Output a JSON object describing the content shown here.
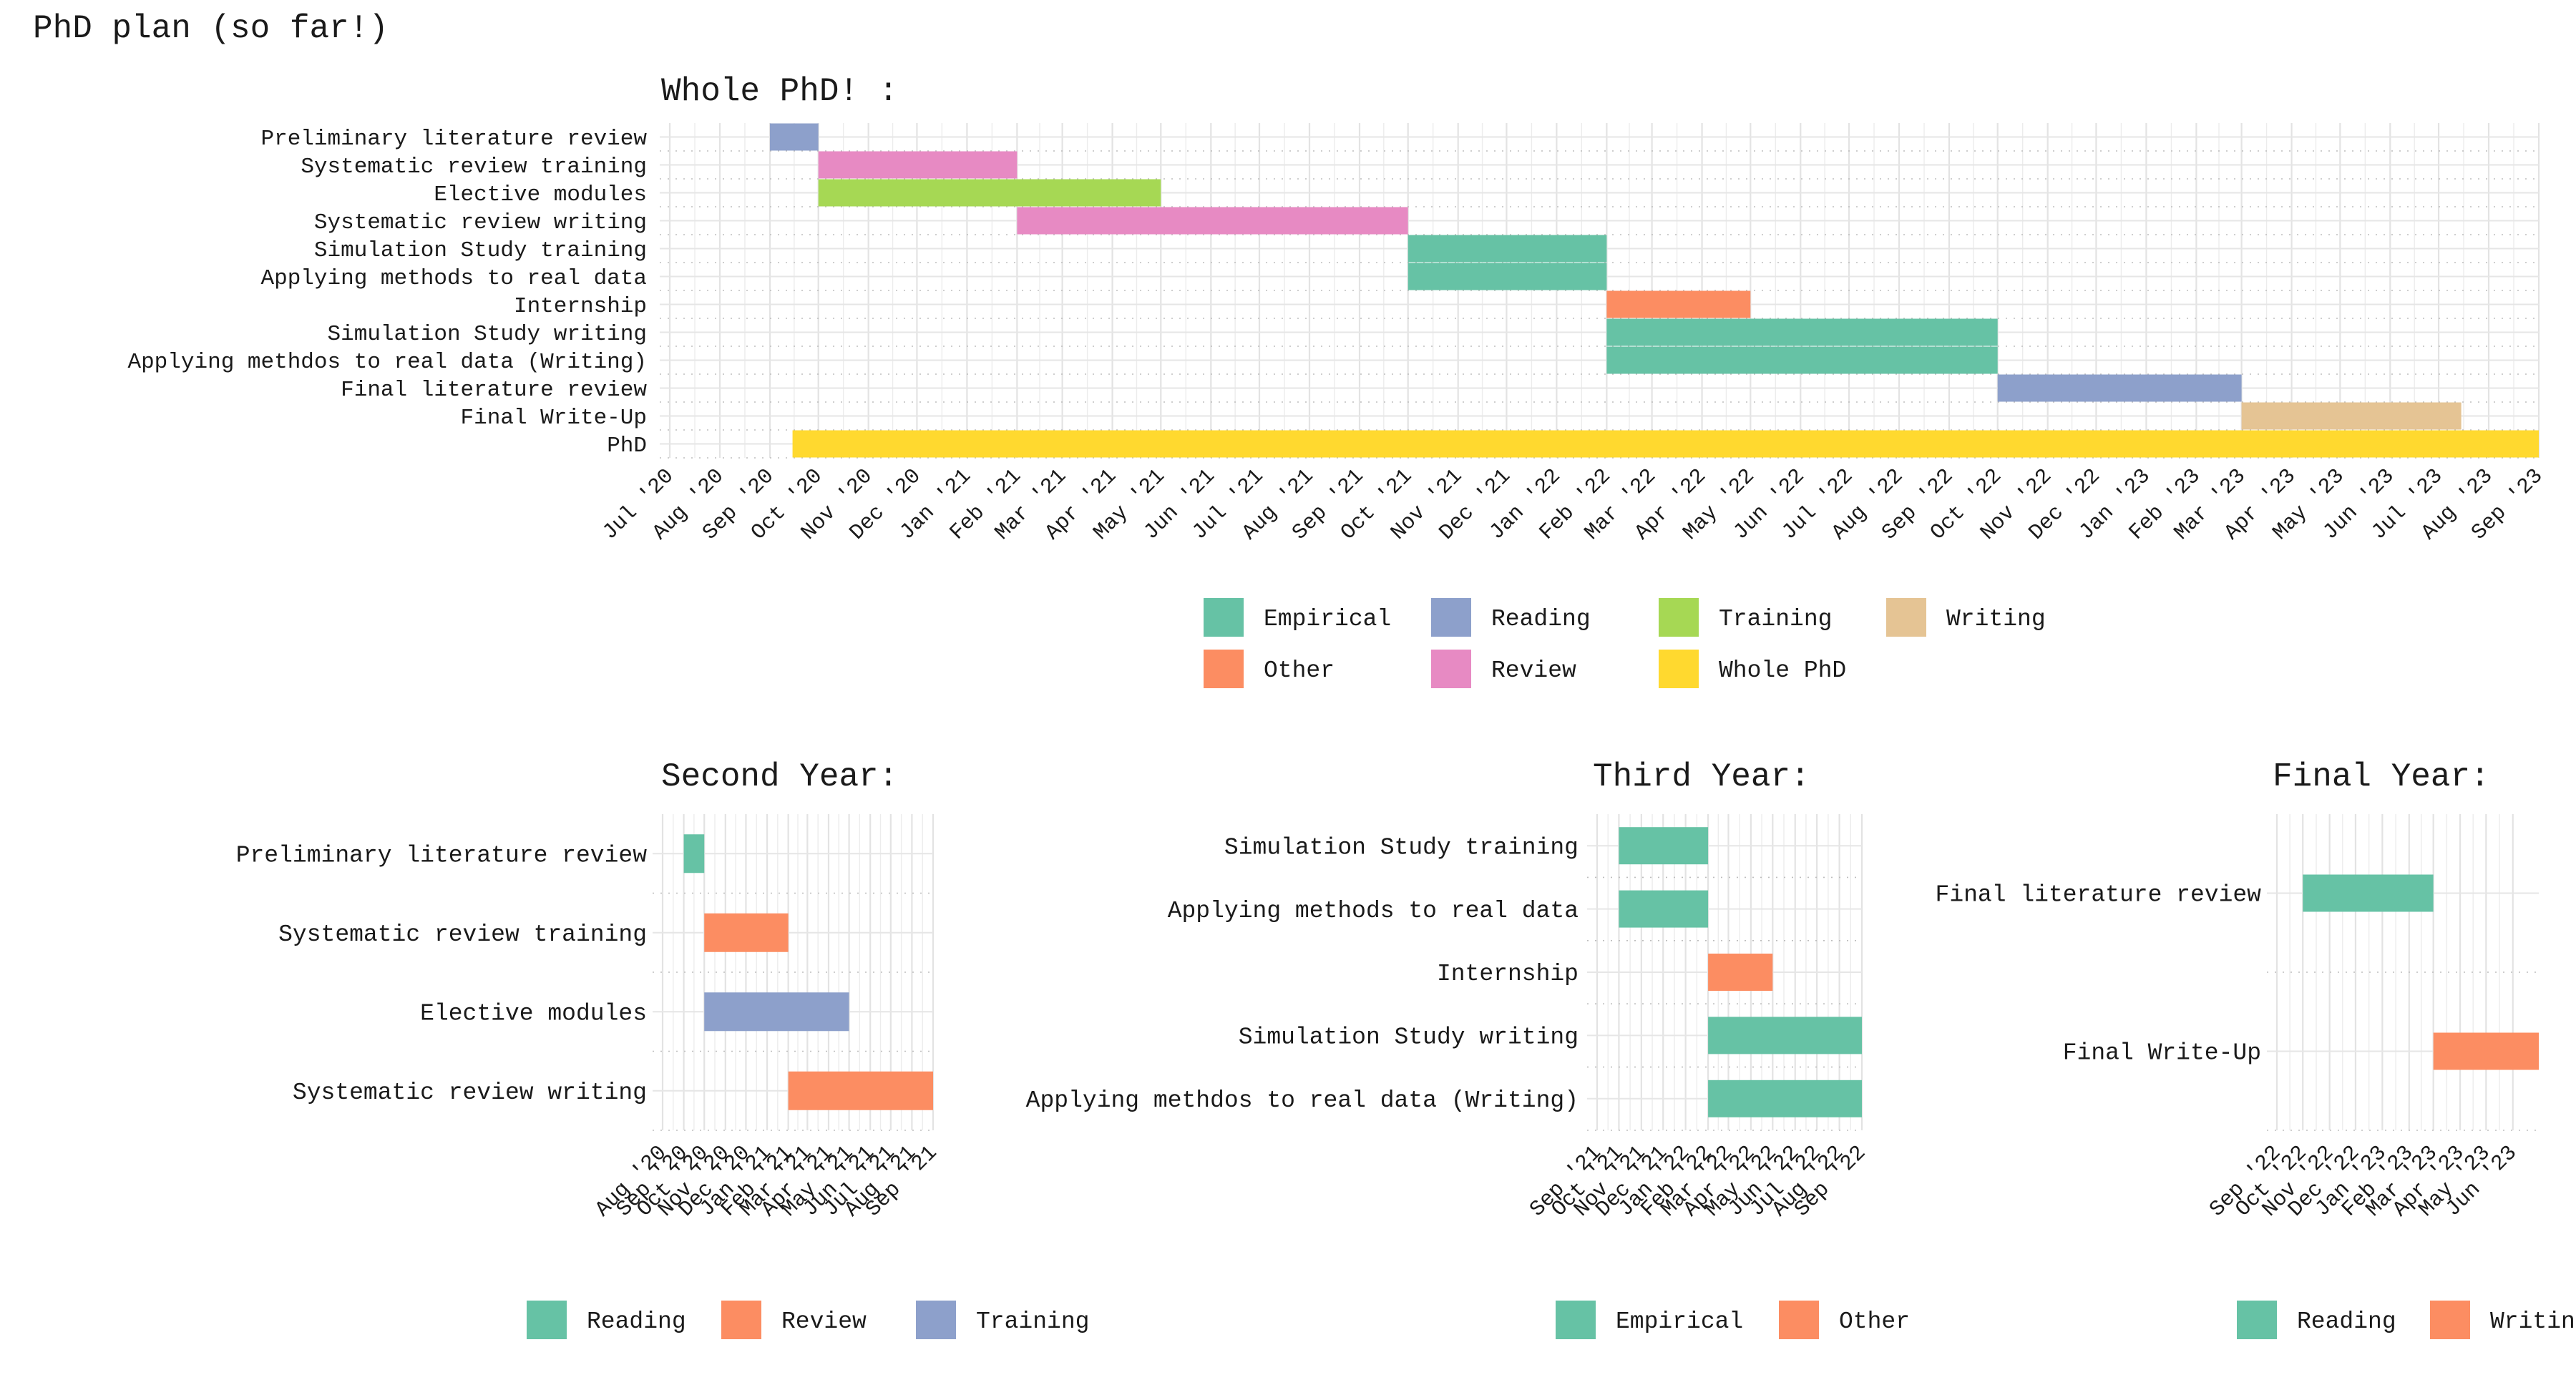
{
  "page_title": "PhD plan (so far!)",
  "colors": {
    "Empirical": "#66c2a5",
    "Other": "#fc8d62",
    "Reading": "#8da0cb",
    "Review": "#e78ac3",
    "Training": "#a6d854",
    "Whole PhD": "#ffd92f",
    "Writing": "#e5c494"
  },
  "chart_data": [
    {
      "id": "whole",
      "type": "gantt",
      "title": "Whole PhD! :",
      "date_range": [
        "2020-07-01",
        "2023-09-01"
      ],
      "tick_labels": [
        "Jul '20",
        "Aug '20",
        "Sep '20",
        "Oct '20",
        "Nov '20",
        "Dec '20",
        "Jan '21",
        "Feb '21",
        "Mar '21",
        "Apr '21",
        "May '21",
        "Jun '21",
        "Jul '21",
        "Aug '21",
        "Sep '21",
        "Oct '21",
        "Nov '21",
        "Dec '21",
        "Jan '22",
        "Feb '22",
        "Mar '22",
        "Apr '22",
        "May '22",
        "Jun '22",
        "Jul '22",
        "Aug '22",
        "Sep '22",
        "Oct '22",
        "Nov '22",
        "Dec '22",
        "Jan '23",
        "Feb '23",
        "Mar '23",
        "Apr '23",
        "May '23",
        "Jun '23",
        "Jul '23",
        "Aug '23",
        "Sep '23"
      ],
      "tasks": [
        {
          "label": "Preliminary literature review",
          "start": "2020-09-01",
          "end": "2020-10-01",
          "category": "Reading"
        },
        {
          "label": "Systematic review training",
          "start": "2020-10-01",
          "end": "2021-02-01",
          "category": "Review"
        },
        {
          "label": "Elective modules",
          "start": "2020-10-01",
          "end": "2021-05-01",
          "category": "Training"
        },
        {
          "label": "Systematic review writing",
          "start": "2021-02-01",
          "end": "2021-10-01",
          "category": "Review"
        },
        {
          "label": "Simulation Study training",
          "start": "2021-10-01",
          "end": "2022-02-01",
          "category": "Empirical"
        },
        {
          "label": "Applying methods to real data",
          "start": "2021-10-01",
          "end": "2022-02-01",
          "category": "Empirical"
        },
        {
          "label": "Internship",
          "start": "2022-02-01",
          "end": "2022-05-01",
          "category": "Other"
        },
        {
          "label": "Simulation Study writing",
          "start": "2022-02-01",
          "end": "2022-10-01",
          "category": "Empirical"
        },
        {
          "label": "Applying methdos to real data (Writing)",
          "start": "2022-02-01",
          "end": "2022-10-01",
          "category": "Empirical"
        },
        {
          "label": "Final literature review",
          "start": "2022-10-01",
          "end": "2023-03-01",
          "category": "Reading"
        },
        {
          "label": "Final Write-Up",
          "start": "2023-03-01",
          "end": "2023-07-15",
          "category": "Writing"
        },
        {
          "label": "PhD",
          "start": "2020-09-15",
          "end": "2023-09-01",
          "category": "Whole PhD"
        }
      ],
      "legend": [
        [
          "Empirical",
          "Reading",
          "Training",
          "Writing"
        ],
        [
          "Other",
          "Review",
          "Whole PhD"
        ]
      ]
    },
    {
      "id": "second",
      "type": "gantt",
      "title": "Second Year:",
      "date_range": [
        "2020-08-01",
        "2021-09-01"
      ],
      "tick_labels": [
        "Aug '20",
        "Sep '20",
        "Oct '20",
        "Nov '20",
        "Dec '20",
        "Jan '21",
        "Feb '21",
        "Mar '21",
        "Apr '21",
        "May '21",
        "Jun '21",
        "Jul '21",
        "Aug '21",
        "Sep '21"
      ],
      "tasks": [
        {
          "label": "Preliminary literature review",
          "start": "2020-09-01",
          "end": "2020-10-01",
          "category": "Reading"
        },
        {
          "label": "Systematic review training",
          "start": "2020-10-01",
          "end": "2021-02-01",
          "category": "Review"
        },
        {
          "label": "Elective modules",
          "start": "2020-10-01",
          "end": "2021-05-01",
          "category": "Training"
        },
        {
          "label": "Systematic review writing",
          "start": "2021-02-01",
          "end": "2021-10-01",
          "category": "Review"
        }
      ],
      "colors": {
        "Reading": "#66c2a5",
        "Review": "#fc8d62",
        "Training": "#8da0cb"
      },
      "legend": [
        [
          "Reading",
          "Review",
          "Training"
        ]
      ]
    },
    {
      "id": "third",
      "type": "gantt",
      "title": "Third Year:",
      "date_range": [
        "2021-09-01",
        "2022-09-01"
      ],
      "tick_labels": [
        "Sep '21",
        "Oct '21",
        "Nov '21",
        "Dec '21",
        "Jan '22",
        "Feb '22",
        "Mar '22",
        "Apr '22",
        "May '22",
        "Jun '22",
        "Jul '22",
        "Aug '22",
        "Sep '22"
      ],
      "tasks": [
        {
          "label": "Simulation Study training",
          "start": "2021-10-01",
          "end": "2022-02-01",
          "category": "Empirical"
        },
        {
          "label": "Applying methods to real data",
          "start": "2021-10-01",
          "end": "2022-02-01",
          "category": "Empirical"
        },
        {
          "label": "Internship",
          "start": "2022-02-01",
          "end": "2022-05-01",
          "category": "Other"
        },
        {
          "label": "Simulation Study writing",
          "start": "2022-02-01",
          "end": "2022-10-01",
          "category": "Empirical"
        },
        {
          "label": "Applying methdos to real data (Writing)",
          "start": "2022-02-01",
          "end": "2022-10-01",
          "category": "Empirical"
        }
      ],
      "colors": {
        "Empirical": "#66c2a5",
        "Other": "#fc8d62"
      },
      "legend": [
        [
          "Empirical",
          "Other"
        ]
      ]
    },
    {
      "id": "final",
      "type": "gantt",
      "title": "Final Year:",
      "date_range": [
        "2022-09-01",
        "2023-07-01"
      ],
      "tick_labels": [
        "Sep '22",
        "Oct '22",
        "Nov '22",
        "Dec '22",
        "Jan '23",
        "Feb '23",
        "Mar '23",
        "Apr '23",
        "May '23",
        "Jun '23"
      ],
      "tasks": [
        {
          "label": "Final literature review",
          "start": "2022-10-01",
          "end": "2023-03-01",
          "category": "Reading"
        },
        {
          "label": "Final Write-Up",
          "start": "2023-03-01",
          "end": "2023-07-15",
          "category": "Writing"
        }
      ],
      "colors": {
        "Reading": "#66c2a5",
        "Writing": "#fc8d62"
      },
      "legend": [
        [
          "Reading",
          "Writing"
        ]
      ]
    }
  ]
}
